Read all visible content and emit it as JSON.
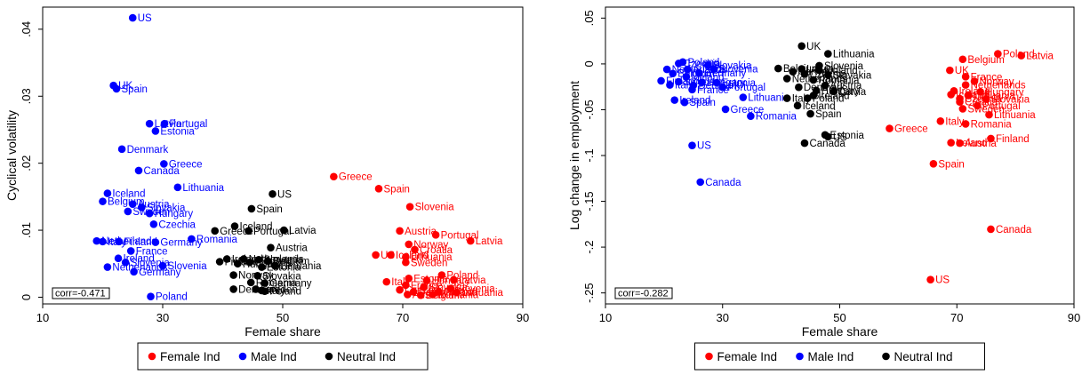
{
  "colors": {
    "F": "#ff0000",
    "M": "#0000ff",
    "N": "#000000"
  },
  "legend": [
    {
      "key": "F",
      "label": "Female Ind"
    },
    {
      "key": "M",
      "label": "Male Ind"
    },
    {
      "key": "N",
      "label": "Neutral Ind"
    }
  ],
  "chart_data": [
    {
      "type": "scatter",
      "xlabel": "Female share",
      "ylabel": "Cyclical volatility",
      "xlim": [
        10,
        90
      ],
      "ylim": [
        -0.001,
        0.0433
      ],
      "xticks": [
        10,
        30,
        50,
        70,
        90
      ],
      "yticks": [
        0,
        0.01,
        0.02,
        0.03,
        0.04
      ],
      "ytick_labels": [
        "0",
        ".01",
        ".02",
        ".03",
        ".04"
      ],
      "annotation": "corr=-0.471",
      "points": [
        {
          "g": "M",
          "x": 25.0,
          "y": 0.0417,
          "label": "US"
        },
        {
          "g": "M",
          "x": 21.8,
          "y": 0.0316,
          "label": "UK"
        },
        {
          "g": "M",
          "x": 22.3,
          "y": 0.0311,
          "label": "Spain"
        },
        {
          "g": "M",
          "x": 27.8,
          "y": 0.0259,
          "label": "Latvia"
        },
        {
          "g": "M",
          "x": 30.3,
          "y": 0.0259,
          "label": "Portugal"
        },
        {
          "g": "M",
          "x": 28.8,
          "y": 0.0248,
          "label": "Estonia"
        },
        {
          "g": "M",
          "x": 23.2,
          "y": 0.0221,
          "label": "Denmark"
        },
        {
          "g": "M",
          "x": 30.2,
          "y": 0.0199,
          "label": "Greece"
        },
        {
          "g": "M",
          "x": 26.0,
          "y": 0.0189,
          "label": "Canada"
        },
        {
          "g": "M",
          "x": 32.5,
          "y": 0.0164,
          "label": "Lithuania"
        },
        {
          "g": "M",
          "x": 20.8,
          "y": 0.0155,
          "label": "Iceland"
        },
        {
          "g": "M",
          "x": 20.0,
          "y": 0.0143,
          "label": "Belgium"
        },
        {
          "g": "M",
          "x": 25.0,
          "y": 0.0139,
          "label": "Austria"
        },
        {
          "g": "M",
          "x": 26.5,
          "y": 0.0134,
          "label": "Slovakia"
        },
        {
          "g": "M",
          "x": 24.2,
          "y": 0.0128,
          "label": "Sweden"
        },
        {
          "g": "M",
          "x": 27.8,
          "y": 0.0125,
          "label": "Hungary"
        },
        {
          "g": "M",
          "x": 28.5,
          "y": 0.0109,
          "label": "Czechia"
        },
        {
          "g": "M",
          "x": 34.8,
          "y": 0.0087,
          "label": "Romania"
        },
        {
          "g": "M",
          "x": 19.0,
          "y": 0.0084,
          "label": "Netherlands"
        },
        {
          "g": "M",
          "x": 20.0,
          "y": 0.0083,
          "label": "Italy"
        },
        {
          "g": "M",
          "x": 22.7,
          "y": 0.0083,
          "label": "Finland"
        },
        {
          "g": "M",
          "x": 28.8,
          "y": 0.0082,
          "label": "Germany"
        },
        {
          "g": "M",
          "x": 24.7,
          "y": 0.0069,
          "label": "France"
        },
        {
          "g": "M",
          "x": 22.6,
          "y": 0.0058,
          "label": "Ireland"
        },
        {
          "g": "M",
          "x": 23.8,
          "y": 0.0052,
          "label": "Slovenia"
        },
        {
          "g": "M",
          "x": 30.0,
          "y": 0.0047,
          "label": "Slovenia"
        },
        {
          "g": "M",
          "x": 20.8,
          "y": 0.0045,
          "label": "Netherlands"
        },
        {
          "g": "M",
          "x": 25.2,
          "y": 0.0038,
          "label": "Germany"
        },
        {
          "g": "M",
          "x": 28.0,
          "y": 0.0001,
          "label": "Poland"
        },
        {
          "g": "N",
          "x": 48.3,
          "y": 0.0154,
          "label": "US"
        },
        {
          "g": "N",
          "x": 44.8,
          "y": 0.0132,
          "label": "Spain"
        },
        {
          "g": "N",
          "x": 42.0,
          "y": 0.0106,
          "label": "Iceland"
        },
        {
          "g": "N",
          "x": 50.2,
          "y": 0.01,
          "label": "Latvia"
        },
        {
          "g": "N",
          "x": 38.7,
          "y": 0.0099,
          "label": "Greece"
        },
        {
          "g": "N",
          "x": 44.3,
          "y": 0.0099,
          "label": "Portugal"
        },
        {
          "g": "N",
          "x": 48.0,
          "y": 0.0074,
          "label": "Austria"
        },
        {
          "g": "N",
          "x": 40.7,
          "y": 0.0057,
          "label": "Ireland"
        },
        {
          "g": "N",
          "x": 43.5,
          "y": 0.0057,
          "label": "Netherlands"
        },
        {
          "g": "N",
          "x": 46.0,
          "y": 0.0056,
          "label": "Slovenia"
        },
        {
          "g": "N",
          "x": 39.5,
          "y": 0.0053,
          "label": "Finland"
        },
        {
          "g": "N",
          "x": 47.5,
          "y": 0.0054,
          "label": "Belgium"
        },
        {
          "g": "N",
          "x": 44.5,
          "y": 0.0052,
          "label": "Czechia"
        },
        {
          "g": "N",
          "x": 42.5,
          "y": 0.005,
          "label": "Hungary"
        },
        {
          "g": "N",
          "x": 48.7,
          "y": 0.0047,
          "label": "Lithuania"
        },
        {
          "g": "N",
          "x": 46.5,
          "y": 0.0045,
          "label": "Estonia"
        },
        {
          "g": "N",
          "x": 41.8,
          "y": 0.0033,
          "label": "Norway"
        },
        {
          "g": "N",
          "x": 45.8,
          "y": 0.0032,
          "label": "Slovakia"
        },
        {
          "g": "N",
          "x": 44.7,
          "y": 0.0022,
          "label": "Romania"
        },
        {
          "g": "N",
          "x": 47.0,
          "y": 0.0021,
          "label": "Germany"
        },
        {
          "g": "N",
          "x": 41.8,
          "y": 0.0012,
          "label": "Denmark"
        },
        {
          "g": "N",
          "x": 45.5,
          "y": 0.0012,
          "label": "Sweden"
        },
        {
          "g": "N",
          "x": 46.5,
          "y": 0.001,
          "label": "Italy"
        },
        {
          "g": "N",
          "x": 47.0,
          "y": 0.0009,
          "label": "Poland"
        },
        {
          "g": "F",
          "x": 58.5,
          "y": 0.018,
          "label": "Greece"
        },
        {
          "g": "F",
          "x": 66.0,
          "y": 0.0162,
          "label": "Spain"
        },
        {
          "g": "F",
          "x": 71.2,
          "y": 0.0135,
          "label": "Slovenia"
        },
        {
          "g": "F",
          "x": 69.5,
          "y": 0.0099,
          "label": "Austria"
        },
        {
          "g": "F",
          "x": 75.5,
          "y": 0.0093,
          "label": "Portugal"
        },
        {
          "g": "F",
          "x": 81.3,
          "y": 0.0084,
          "label": "Latvia"
        },
        {
          "g": "F",
          "x": 71.0,
          "y": 0.0079,
          "label": "Norway"
        },
        {
          "g": "F",
          "x": 72.0,
          "y": 0.0071,
          "label": "Croatia"
        },
        {
          "g": "F",
          "x": 65.5,
          "y": 0.0063,
          "label": "US"
        },
        {
          "g": "F",
          "x": 68.0,
          "y": 0.0063,
          "label": "Iceland"
        },
        {
          "g": "F",
          "x": 70.5,
          "y": 0.006,
          "label": "Lithuania"
        },
        {
          "g": "F",
          "x": 70.5,
          "y": 0.0052,
          "label": "Sweden"
        },
        {
          "g": "F",
          "x": 76.5,
          "y": 0.0033,
          "label": "Poland"
        },
        {
          "g": "F",
          "x": 71.0,
          "y": 0.0028,
          "label": "Estonia"
        },
        {
          "g": "F",
          "x": 74.0,
          "y": 0.0025,
          "label": "Hungary"
        },
        {
          "g": "F",
          "x": 78.5,
          "y": 0.0026,
          "label": "Latvia"
        },
        {
          "g": "F",
          "x": 67.3,
          "y": 0.0023,
          "label": "Italy"
        },
        {
          "g": "F",
          "x": 70.5,
          "y": 0.0018,
          "label": "France"
        },
        {
          "g": "F",
          "x": 73.5,
          "y": 0.0015,
          "label": "Slovakia"
        },
        {
          "g": "F",
          "x": 78.0,
          "y": 0.0013,
          "label": "Slovenia"
        },
        {
          "g": "F",
          "x": 69.5,
          "y": 0.0011,
          "label": "Czechia"
        },
        {
          "g": "F",
          "x": 71.8,
          "y": 0.0008,
          "label": "Denmark"
        },
        {
          "g": "F",
          "x": 76.0,
          "y": 0.0008,
          "label": "Finland"
        },
        {
          "g": "F",
          "x": 79.0,
          "y": 0.0007,
          "label": "Lithuania"
        },
        {
          "g": "F",
          "x": 70.8,
          "y": 0.0004,
          "label": "Austria"
        },
        {
          "g": "F",
          "x": 73.0,
          "y": 0.0003,
          "label": "Belgium"
        },
        {
          "g": "F",
          "x": 75.0,
          "y": 0.0004,
          "label": "Romania"
        }
      ]
    },
    {
      "type": "scatter",
      "xlabel": "Female share",
      "ylabel": "Log change in employment",
      "xlim": [
        10,
        90
      ],
      "ylim": [
        -0.262,
        0.062
      ],
      "xticks": [
        10,
        30,
        50,
        70,
        90
      ],
      "yticks": [
        -0.25,
        -0.2,
        -0.15,
        -0.1,
        -0.05,
        0,
        0.05
      ],
      "ytick_labels": [
        "-.25",
        "-.2",
        "-.15",
        "-.1",
        "-.05",
        "0",
        ".05"
      ],
      "annotation": "corr=-0.282",
      "points": [
        {
          "g": "M",
          "x": 23.2,
          "y": 0.002,
          "label": "Poland"
        },
        {
          "g": "M",
          "x": 22.5,
          "y": 0.0005,
          "label": "Czechia"
        },
        {
          "g": "M",
          "x": 27.5,
          "y": -0.0015,
          "label": "Slovakia"
        },
        {
          "g": "M",
          "x": 20.5,
          "y": -0.006,
          "label": "Netherlands"
        },
        {
          "g": "M",
          "x": 24.0,
          "y": -0.006,
          "label": "Austria"
        },
        {
          "g": "M",
          "x": 28.5,
          "y": -0.0055,
          "label": "Slovenia"
        },
        {
          "g": "M",
          "x": 21.5,
          "y": -0.0105,
          "label": "Belgium"
        },
        {
          "g": "M",
          "x": 26.0,
          "y": -0.01,
          "label": "Germany"
        },
        {
          "g": "M",
          "x": 23.8,
          "y": -0.014,
          "label": "Iceland"
        },
        {
          "g": "M",
          "x": 19.5,
          "y": -0.0185,
          "label": "Finland"
        },
        {
          "g": "M",
          "x": 22.5,
          "y": -0.0195,
          "label": "Sweden"
        },
        {
          "g": "M",
          "x": 26.5,
          "y": -0.02,
          "label": "Hungary"
        },
        {
          "g": "M",
          "x": 29.0,
          "y": -0.0205,
          "label": "Estonia"
        },
        {
          "g": "M",
          "x": 21.0,
          "y": -0.023,
          "label": "Italy"
        },
        {
          "g": "M",
          "x": 25.0,
          "y": -0.0235,
          "label": "Denmark"
        },
        {
          "g": "M",
          "x": 30.0,
          "y": -0.0255,
          "label": "Portugal"
        },
        {
          "g": "M",
          "x": 24.8,
          "y": -0.028,
          "label": "France"
        },
        {
          "g": "M",
          "x": 33.5,
          "y": -0.0365,
          "label": "Lithuania"
        },
        {
          "g": "M",
          "x": 21.8,
          "y": -0.0395,
          "label": "Ireland"
        },
        {
          "g": "M",
          "x": 23.5,
          "y": -0.042,
          "label": "Spain"
        },
        {
          "g": "M",
          "x": 30.5,
          "y": -0.0495,
          "label": "Greece"
        },
        {
          "g": "M",
          "x": 34.8,
          "y": -0.057,
          "label": "Romania"
        },
        {
          "g": "M",
          "x": 24.8,
          "y": -0.089,
          "label": "US"
        },
        {
          "g": "M",
          "x": 26.2,
          "y": -0.129,
          "label": "Canada"
        },
        {
          "g": "N",
          "x": 43.5,
          "y": 0.0195,
          "label": "UK"
        },
        {
          "g": "N",
          "x": 48.0,
          "y": 0.011,
          "label": "Lithuania"
        },
        {
          "g": "N",
          "x": 46.5,
          "y": -0.002,
          "label": "Slovenia"
        },
        {
          "g": "N",
          "x": 39.5,
          "y": -0.005,
          "label": "Belgium"
        },
        {
          "g": "N",
          "x": 43.5,
          "y": -0.0055,
          "label": "Latvia"
        },
        {
          "g": "N",
          "x": 46.5,
          "y": -0.007,
          "label": "Finland"
        },
        {
          "g": "N",
          "x": 42.0,
          "y": -0.0085,
          "label": "Norway"
        },
        {
          "g": "N",
          "x": 44.0,
          "y": -0.011,
          "label": "Czechia"
        },
        {
          "g": "N",
          "x": 48.0,
          "y": -0.012,
          "label": "Slovakia"
        },
        {
          "g": "N",
          "x": 41.0,
          "y": -0.016,
          "label": "Netherlands"
        },
        {
          "g": "N",
          "x": 45.5,
          "y": -0.0175,
          "label": "Romania"
        },
        {
          "g": "N",
          "x": 43.0,
          "y": -0.0255,
          "label": "Denmark"
        },
        {
          "g": "N",
          "x": 47.5,
          "y": -0.0235,
          "label": "Austria"
        },
        {
          "g": "N",
          "x": 46.0,
          "y": -0.029,
          "label": "Hungary"
        },
        {
          "g": "N",
          "x": 49.0,
          "y": -0.03,
          "label": "Latvia"
        },
        {
          "g": "N",
          "x": 45.5,
          "y": -0.0345,
          "label": "Ireland"
        },
        {
          "g": "N",
          "x": 41.0,
          "y": -0.0375,
          "label": "Italy"
        },
        {
          "g": "N",
          "x": 44.5,
          "y": -0.0375,
          "label": "Poland"
        },
        {
          "g": "N",
          "x": 42.8,
          "y": -0.0455,
          "label": "Iceland"
        },
        {
          "g": "N",
          "x": 45.0,
          "y": -0.0545,
          "label": "Spain"
        },
        {
          "g": "N",
          "x": 47.5,
          "y": -0.0775,
          "label": "Estonia"
        },
        {
          "g": "N",
          "x": 48.0,
          "y": -0.0795,
          "label": "US"
        },
        {
          "g": "N",
          "x": 44.0,
          "y": -0.0865,
          "label": "Canada"
        },
        {
          "g": "F",
          "x": 77.0,
          "y": 0.011,
          "label": "Poland"
        },
        {
          "g": "F",
          "x": 81.0,
          "y": 0.009,
          "label": "Latvia"
        },
        {
          "g": "F",
          "x": 71.0,
          "y": 0.005,
          "label": "Belgium"
        },
        {
          "g": "F",
          "x": 68.8,
          "y": -0.007,
          "label": "UK"
        },
        {
          "g": "F",
          "x": 71.5,
          "y": -0.014,
          "label": "France"
        },
        {
          "g": "F",
          "x": 73.0,
          "y": -0.019,
          "label": "Norway"
        },
        {
          "g": "F",
          "x": 71.5,
          "y": -0.023,
          "label": "Netherlands"
        },
        {
          "g": "F",
          "x": 69.5,
          "y": -0.0295,
          "label": "Ireland"
        },
        {
          "g": "F",
          "x": 74.0,
          "y": -0.0305,
          "label": "Hungary"
        },
        {
          "g": "F",
          "x": 69.0,
          "y": -0.0335,
          "label": "Iceland"
        },
        {
          "g": "F",
          "x": 72.0,
          "y": -0.0345,
          "label": "Lithuania"
        },
        {
          "g": "F",
          "x": 70.5,
          "y": -0.038,
          "label": "Czechia"
        },
        {
          "g": "F",
          "x": 75.0,
          "y": -0.0385,
          "label": "Slovakia"
        },
        {
          "g": "F",
          "x": 70.5,
          "y": -0.0415,
          "label": "Croatia"
        },
        {
          "g": "F",
          "x": 73.5,
          "y": -0.0455,
          "label": "Portugal"
        },
        {
          "g": "F",
          "x": 71.0,
          "y": -0.049,
          "label": "Sweden"
        },
        {
          "g": "F",
          "x": 75.5,
          "y": -0.0555,
          "label": "Lithuania"
        },
        {
          "g": "F",
          "x": 67.2,
          "y": -0.0625,
          "label": "Italy"
        },
        {
          "g": "F",
          "x": 71.5,
          "y": -0.0655,
          "label": "Romania"
        },
        {
          "g": "F",
          "x": 58.5,
          "y": -0.0705,
          "label": "Greece"
        },
        {
          "g": "F",
          "x": 75.8,
          "y": -0.0815,
          "label": "Finland"
        },
        {
          "g": "F",
          "x": 69.0,
          "y": -0.086,
          "label": "Ireland"
        },
        {
          "g": "F",
          "x": 70.5,
          "y": -0.0865,
          "label": "Austria"
        },
        {
          "g": "F",
          "x": 66.0,
          "y": -0.109,
          "label": "Spain"
        },
        {
          "g": "F",
          "x": 75.8,
          "y": -0.1805,
          "label": "Canada"
        },
        {
          "g": "F",
          "x": 65.5,
          "y": -0.2355,
          "label": "US"
        }
      ]
    }
  ]
}
